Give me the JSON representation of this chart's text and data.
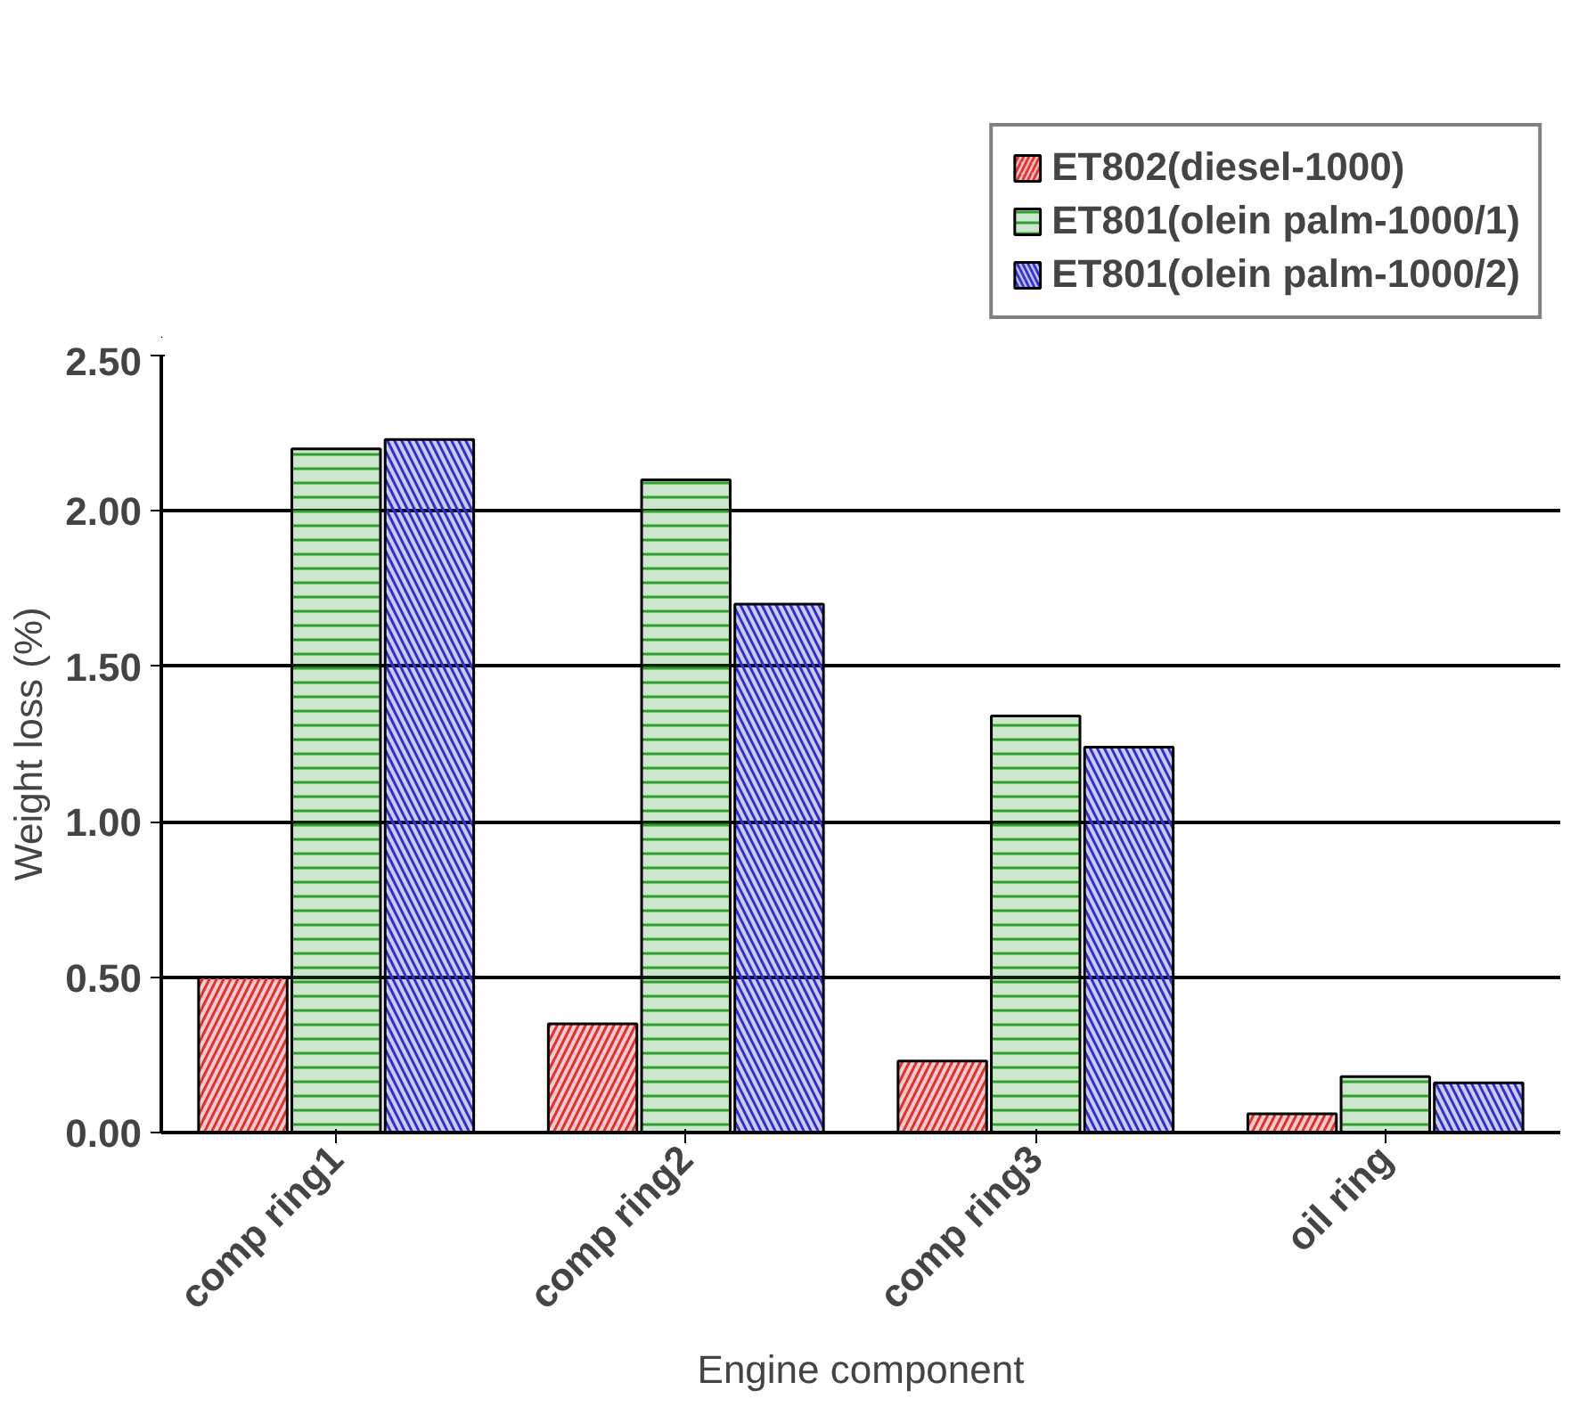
{
  "chart_data": {
    "type": "bar",
    "xlabel": "Engine component",
    "ylabel": "Weight loss (%)",
    "categories": [
      "comp ring1",
      "comp ring2",
      "comp ring3",
      "oil ring"
    ],
    "series": [
      {
        "name": "ET802(diesel-1000)",
        "color": "#e03030",
        "values": [
          0.5,
          0.35,
          0.23,
          0.06
        ]
      },
      {
        "name": "ET801(olein palm-1000/1)",
        "color": "#30a030",
        "values": [
          2.2,
          2.1,
          1.34,
          0.18
        ]
      },
      {
        "name": "ET801(olein palm-1000/2)",
        "color": "#3030d0",
        "values": [
          2.23,
          1.7,
          1.24,
          0.16
        ]
      }
    ],
    "ylim": [
      0,
      2.5
    ],
    "yticks": [
      {
        "value": 0,
        "label": "0.00"
      },
      {
        "value": 0.5,
        "label": "0.50"
      },
      {
        "value": 1,
        "label": "1.00"
      },
      {
        "value": 1.5,
        "label": "1.50"
      },
      {
        "value": 2,
        "label": "2.00"
      },
      {
        "value": 2.5,
        "label": "2.50"
      }
    ],
    "grid": "y",
    "legend": "top"
  }
}
